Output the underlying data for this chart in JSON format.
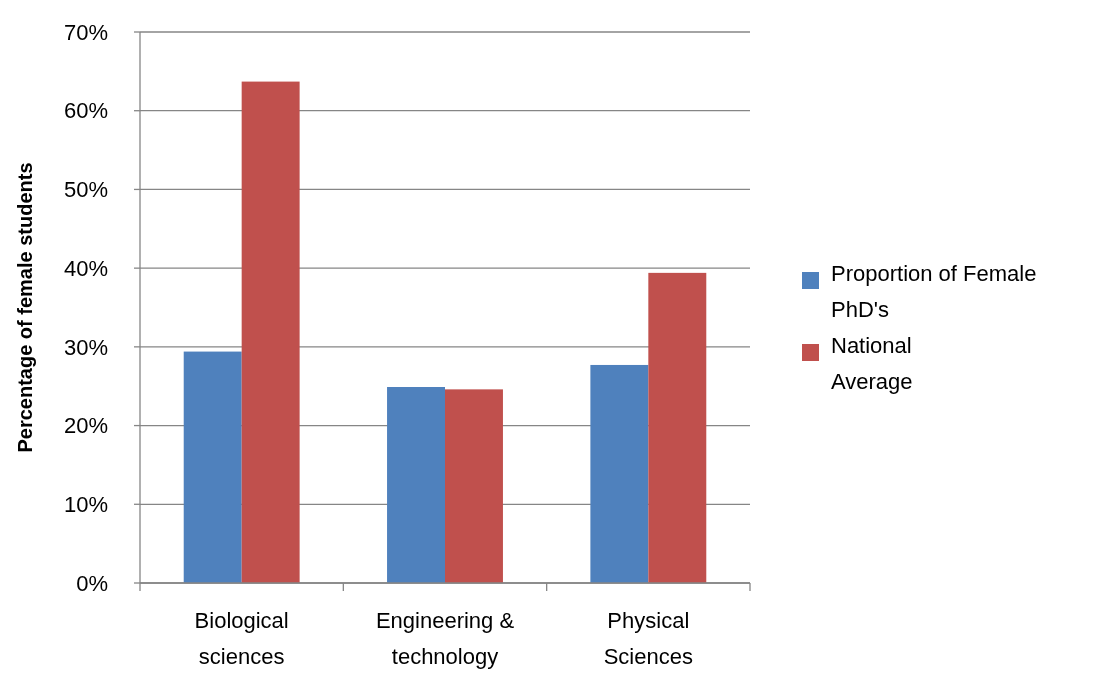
{
  "chart_data": {
    "type": "bar",
    "ylabel": "Percentage of female students",
    "categories": [
      "Biological sciences",
      "Engineering & technology",
      "Physical Sciences"
    ],
    "series": [
      {
        "name": "Proportion of Female PhD's",
        "color": "#4f81bd",
        "values": [
          29.4,
          24.9,
          27.7
        ]
      },
      {
        "name": "National Average",
        "color": "#c0504d",
        "values": [
          63.7,
          24.6,
          39.4
        ]
      }
    ],
    "ylim": [
      0,
      70
    ],
    "yticks": [
      {
        "value": 0,
        "label": "0%"
      },
      {
        "value": 10,
        "label": "10%"
      },
      {
        "value": 20,
        "label": "20%"
      },
      {
        "value": 30,
        "label": "30%"
      },
      {
        "value": 40,
        "label": "40%"
      },
      {
        "value": 50,
        "label": "50%"
      },
      {
        "value": 60,
        "label": "60%"
      },
      {
        "value": 70,
        "label": "70%"
      }
    ],
    "grid": "y",
    "legend": "right"
  }
}
